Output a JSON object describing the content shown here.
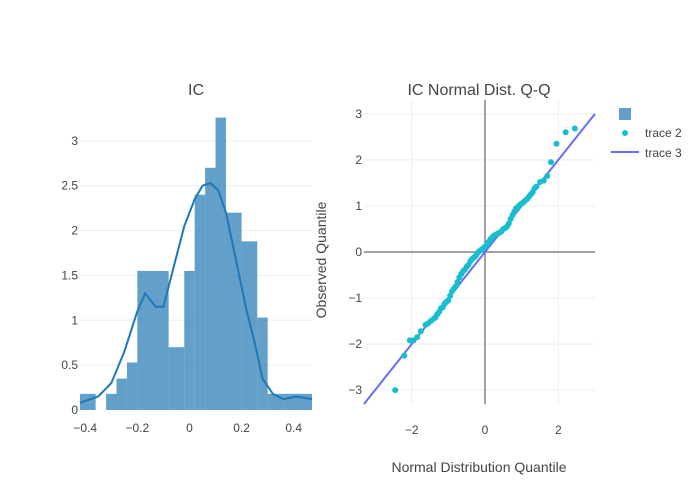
{
  "colors": {
    "histogram": "#1f77b4",
    "kde": "#1f77b4",
    "qq_points": "#17becf",
    "qq_line": "#636efa",
    "grid": "#eeeeee",
    "zero_line": "#444444"
  },
  "chart_data": [
    {
      "type": "bar",
      "title": "IC",
      "xlabel": "",
      "ylabel": "",
      "xlim": [
        -0.42,
        0.47
      ],
      "ylim": [
        0,
        3.4
      ],
      "x_ticks": [
        -0.4,
        -0.2,
        0,
        0.2,
        0.4
      ],
      "x_tick_labels": [
        "−0.4",
        "−0.2",
        "0",
        "0.2",
        "0.4"
      ],
      "y_ticks": [
        0,
        0.5,
        1,
        1.5,
        2,
        2.5,
        3
      ],
      "y_tick_labels": [
        "0",
        "0.5",
        "1",
        "1.5",
        "2",
        "2.5",
        "3"
      ],
      "bin_edges": [
        -0.42,
        -0.36,
        -0.32,
        -0.28,
        -0.24,
        -0.2,
        -0.14,
        -0.08,
        -0.02,
        0.02,
        0.06,
        0.1,
        0.14,
        0.2,
        0.26,
        0.3,
        0.36,
        0.42,
        0.47
      ],
      "values": [
        0.18,
        0,
        0.18,
        0.35,
        0.53,
        1.55,
        1.55,
        0.7,
        1.55,
        2.4,
        2.7,
        3.26,
        2.2,
        1.88,
        1.03,
        0.18,
        0.18,
        0.18
      ],
      "kde": {
        "x": [
          -0.42,
          -0.35,
          -0.3,
          -0.25,
          -0.2,
          -0.17,
          -0.13,
          -0.1,
          -0.06,
          -0.02,
          0.02,
          0.05,
          0.08,
          0.11,
          0.14,
          0.18,
          0.22,
          0.25,
          0.28,
          0.32,
          0.36,
          0.41,
          0.47
        ],
        "y": [
          0.08,
          0.15,
          0.3,
          0.65,
          1.1,
          1.3,
          1.15,
          1.15,
          1.6,
          2.05,
          2.35,
          2.5,
          2.53,
          2.45,
          2.2,
          1.65,
          1.1,
          0.75,
          0.35,
          0.18,
          0.12,
          0.15,
          0.12
        ]
      }
    },
    {
      "type": "scatter",
      "title": "IC Normal Dist. Q-Q",
      "xlabel": "Normal Distribution Quantile",
      "ylabel": "Observed Quantile",
      "xlim": [
        -3.3,
        3.0
      ],
      "ylim": [
        -3.3,
        3.3
      ],
      "x_ticks": [
        -2,
        0,
        2
      ],
      "x_tick_labels": [
        "−2",
        "0",
        "2"
      ],
      "y_ticks": [
        -3,
        -2,
        -1,
        0,
        1,
        2,
        3
      ],
      "y_tick_labels": [
        "−3",
        "−2",
        "−1",
        "0",
        "1",
        "2",
        "3"
      ],
      "grid": true,
      "legend_position": "top-right",
      "legend_entries": [
        {
          "name": "",
          "symbol": "square"
        },
        {
          "name": "trace 2",
          "symbol": "circle"
        },
        {
          "name": "trace 3",
          "symbol": "line"
        }
      ],
      "points": {
        "x": [
          -2.45,
          -2.2,
          -2.05,
          -1.95,
          -1.85,
          -1.75,
          -1.62,
          -1.55,
          -1.48,
          -1.4,
          -1.35,
          -1.3,
          -1.25,
          -1.2,
          -1.15,
          -1.1,
          -1.05,
          -1.0,
          -0.95,
          -0.9,
          -0.85,
          -0.8,
          -0.75,
          -0.7,
          -0.65,
          -0.6,
          -0.55,
          -0.5,
          -0.45,
          -0.4,
          -0.35,
          -0.3,
          -0.25,
          -0.2,
          -0.15,
          -0.1,
          -0.05,
          0.0,
          0.05,
          0.1,
          0.15,
          0.2,
          0.25,
          0.3,
          0.35,
          0.4,
          0.45,
          0.5,
          0.55,
          0.6,
          0.65,
          0.7,
          0.75,
          0.8,
          0.85,
          0.9,
          0.95,
          1.0,
          1.05,
          1.1,
          1.15,
          1.2,
          1.25,
          1.3,
          1.35,
          1.4,
          1.5,
          1.6,
          1.7,
          1.8,
          1.95,
          2.2,
          2.45
        ],
        "y": [
          -3.0,
          -2.25,
          -1.92,
          -1.92,
          -1.85,
          -1.72,
          -1.58,
          -1.55,
          -1.5,
          -1.45,
          -1.42,
          -1.35,
          -1.3,
          -1.22,
          -1.2,
          -1.12,
          -1.08,
          -1.05,
          -0.95,
          -0.85,
          -0.8,
          -0.75,
          -0.65,
          -0.55,
          -0.48,
          -0.42,
          -0.38,
          -0.32,
          -0.28,
          -0.2,
          -0.15,
          -0.12,
          -0.08,
          -0.02,
          0.02,
          0.05,
          0.08,
          0.12,
          0.15,
          0.22,
          0.28,
          0.32,
          0.36,
          0.38,
          0.4,
          0.42,
          0.45,
          0.5,
          0.52,
          0.55,
          0.62,
          0.72,
          0.8,
          0.88,
          0.95,
          0.98,
          1.02,
          1.05,
          1.08,
          1.12,
          1.15,
          1.2,
          1.25,
          1.3,
          1.38,
          1.42,
          1.52,
          1.55,
          1.65,
          1.95,
          2.35,
          2.6,
          2.68
        ]
      },
      "line": {
        "x": [
          -3.3,
          3.0
        ],
        "y": [
          -3.3,
          3.0
        ]
      }
    }
  ]
}
